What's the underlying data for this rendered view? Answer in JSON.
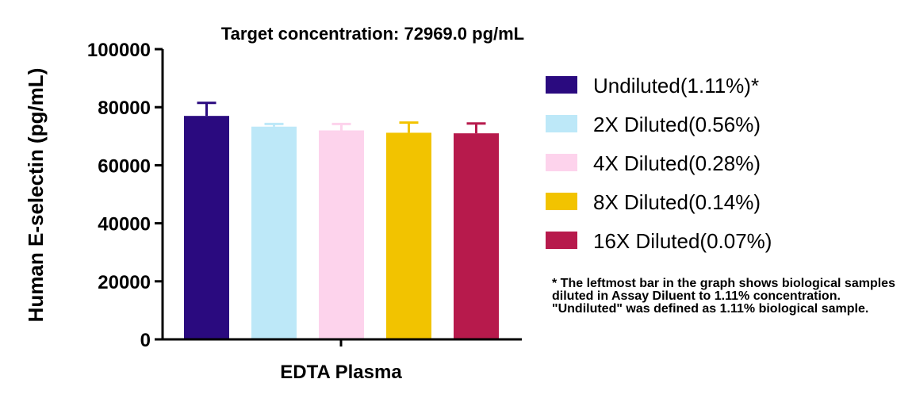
{
  "chart_data": {
    "type": "bar",
    "title": "Target concentration: 72969.0 pg/mL",
    "xlabel": "EDTA Plasma",
    "ylabel": "Human E-selectin (pg/mL)",
    "ylim": [
      0,
      100000
    ],
    "yticks": [
      "0",
      "20000",
      "40000",
      "60000",
      "80000",
      "100000"
    ],
    "grid": false,
    "legend_position": "right",
    "series": [
      {
        "name": "Undiluted(1.11%)*",
        "value": 77000,
        "error": 4500,
        "color": "#2a0a7f"
      },
      {
        "name": "2X Diluted(0.56%)",
        "value": 73300,
        "error": 900,
        "color": "#bde8f8"
      },
      {
        "name": "4X Diluted(0.28%)",
        "value": 72000,
        "error": 2200,
        "color": "#fdd3ec"
      },
      {
        "name": "8X Diluted(0.14%)",
        "value": 71200,
        "error": 3500,
        "color": "#f2c300"
      },
      {
        "name": "16X Diluted(0.07%)",
        "value": 71000,
        "error": 3400,
        "color": "#b71a4c"
      }
    ]
  },
  "note": "* The leftmost bar in the graph shows biological samples diluted in Assay Diluent to 1.11% concentration. \"Undiluted\" was defined as 1.11% biological sample."
}
